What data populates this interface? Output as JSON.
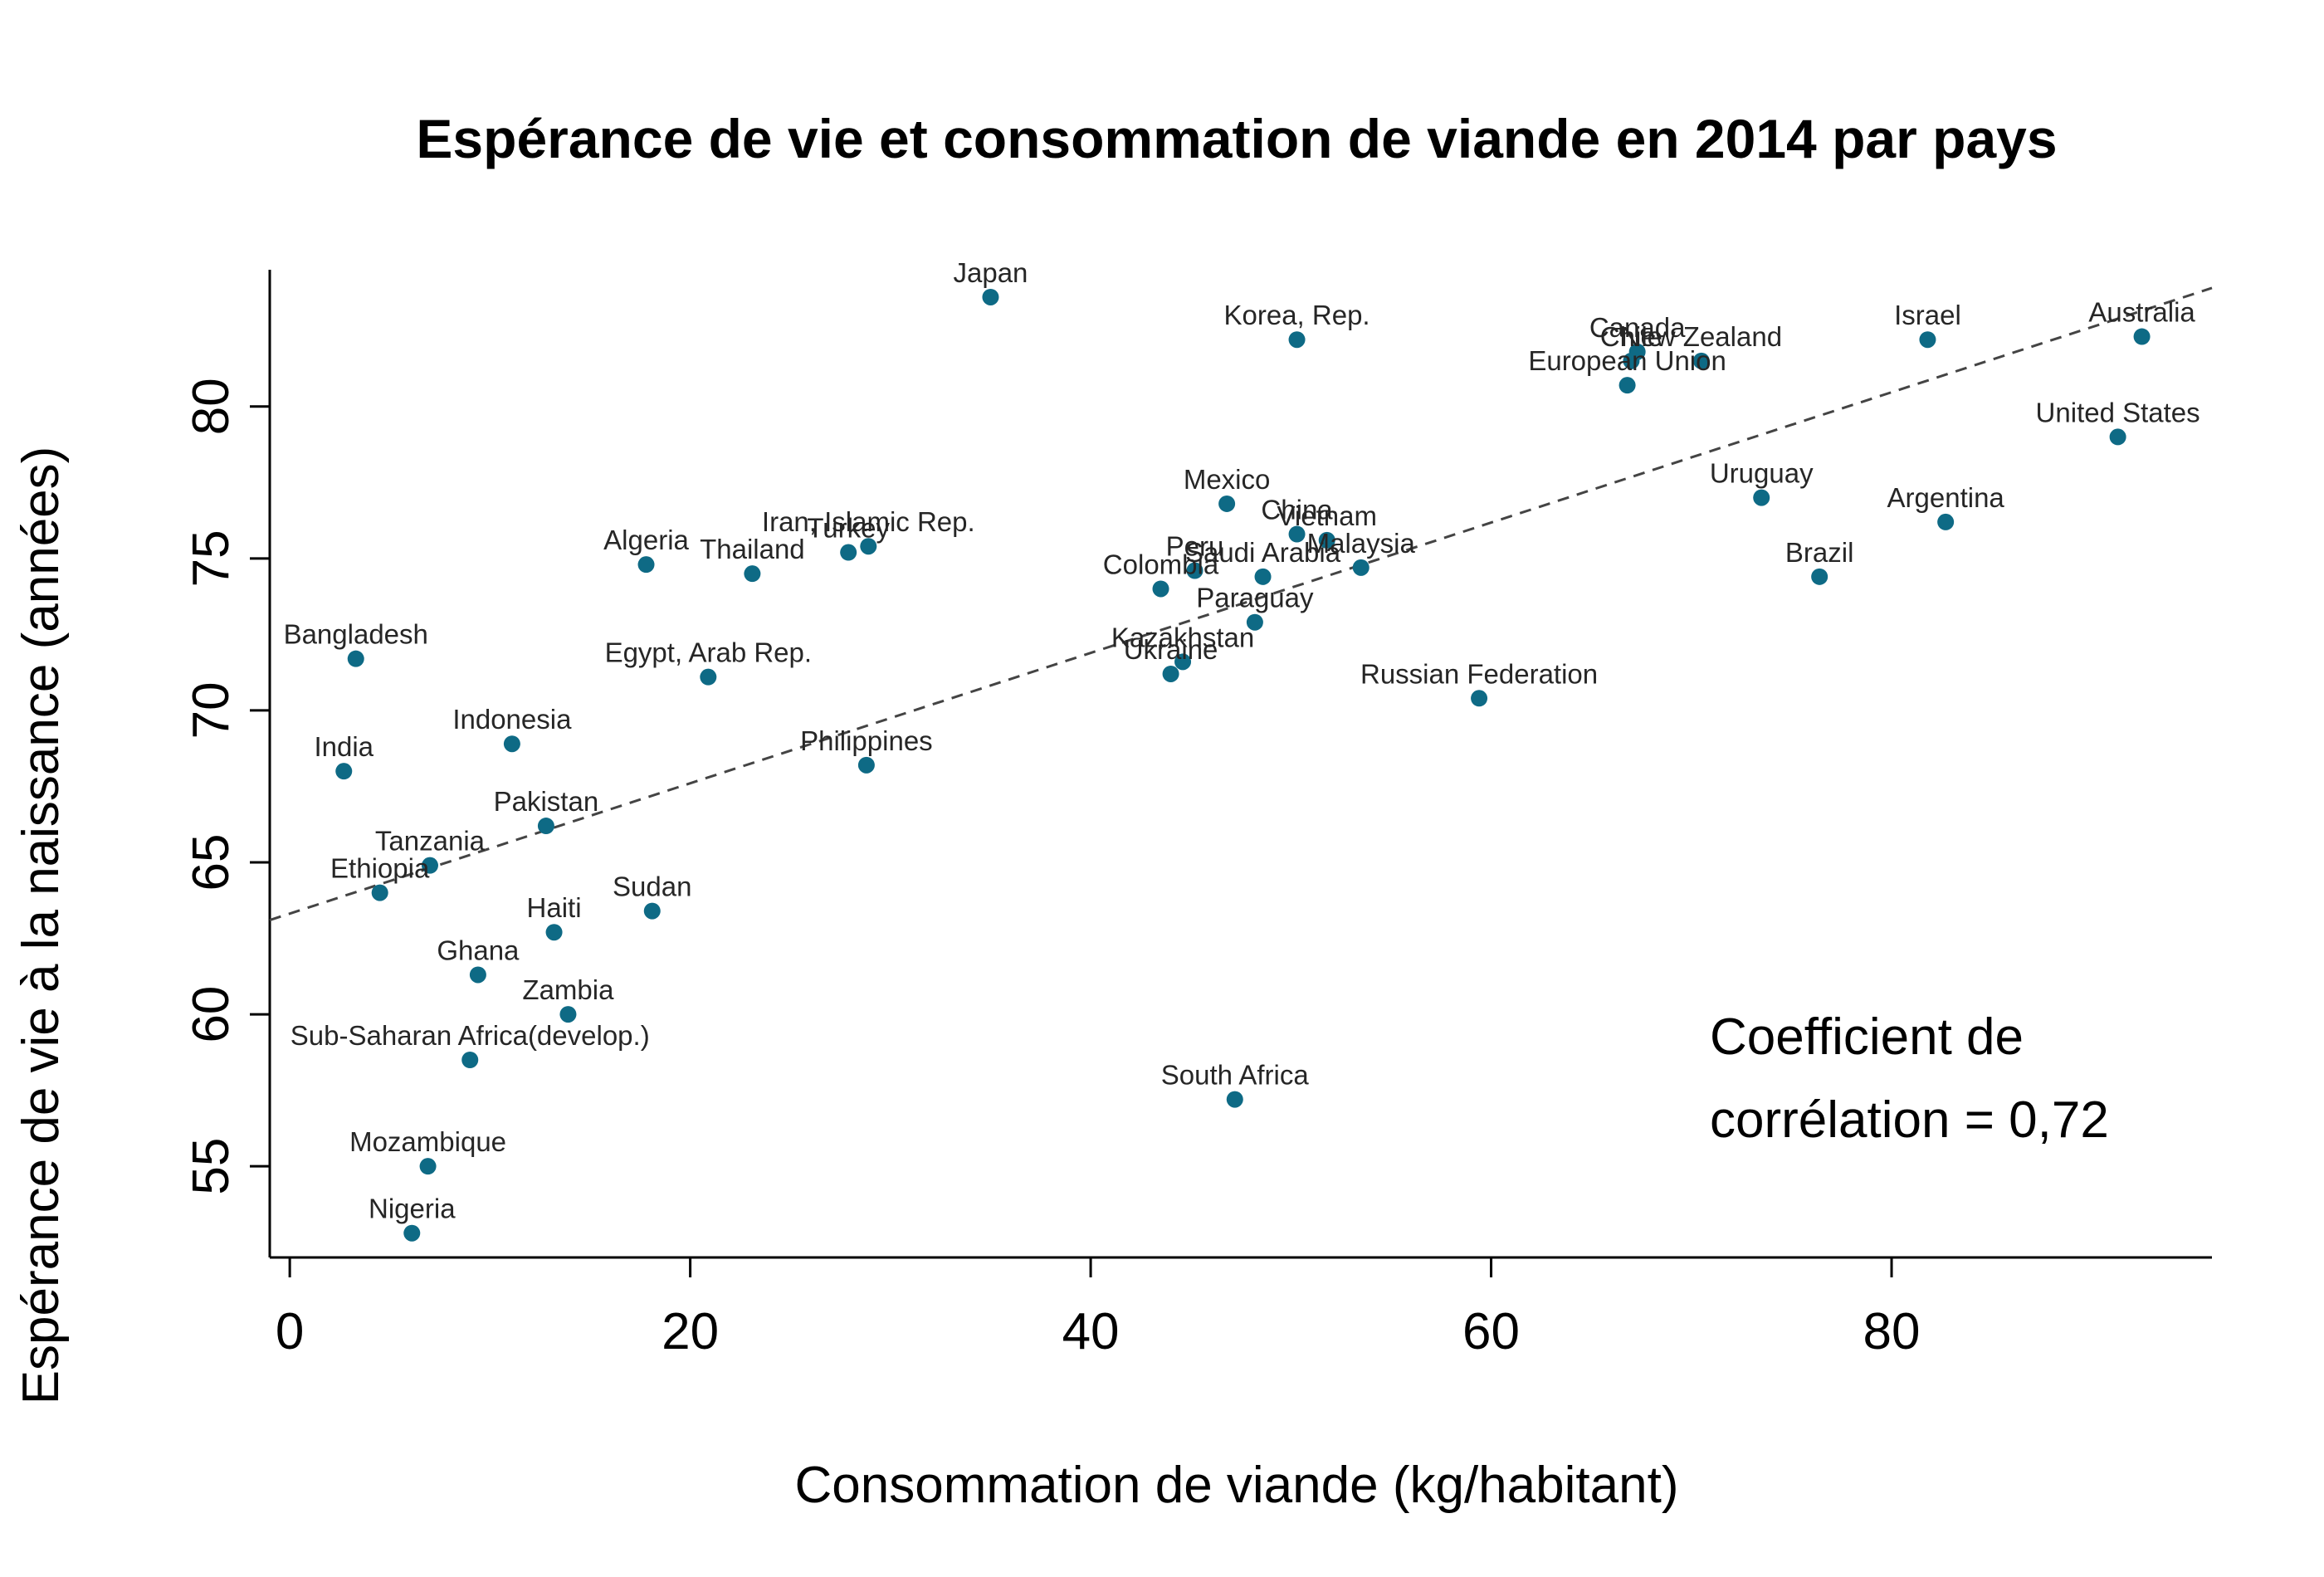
{
  "chart_data": {
    "type": "scatter",
    "title": "Espérance de vie et consommation de viande en 2014 par pays",
    "xlabel": "Consommation de viande (kg/habitant)",
    "ylabel": "Espérance de vie à la naissance (années)",
    "xlim": [
      -1,
      96
    ],
    "ylim": [
      52,
      84.5
    ],
    "xticks": [
      0,
      20,
      40,
      60,
      80
    ],
    "yticks": [
      55,
      60,
      65,
      70,
      75,
      80
    ],
    "grid": false,
    "point_color": "#0e6a85",
    "trendline": {
      "style": "dashed",
      "x": [
        -1,
        96
      ],
      "y": [
        63.1,
        83.9
      ]
    },
    "annotation": [
      "Coefficient de",
      "corrélation = 0,72"
    ],
    "points": [
      {
        "label": "Japan",
        "x": 35.0,
        "y": 83.6
      },
      {
        "label": "Korea, Rep.",
        "x": 50.3,
        "y": 82.2
      },
      {
        "label": "Israel",
        "x": 81.8,
        "y": 82.2
      },
      {
        "label": "Australia",
        "x": 92.5,
        "y": 82.3
      },
      {
        "label": "Canada",
        "x": 67.3,
        "y": 81.8
      },
      {
        "label": "Chile",
        "x": 67.0,
        "y": 81.5
      },
      {
        "label": "New Zealand",
        "x": 70.5,
        "y": 81.5
      },
      {
        "label": "European Union",
        "x": 66.8,
        "y": 80.7
      },
      {
        "label": "United States",
        "x": 91.3,
        "y": 79.0
      },
      {
        "label": "Uruguay",
        "x": 73.5,
        "y": 77.0
      },
      {
        "label": "Argentina",
        "x": 82.7,
        "y": 76.2
      },
      {
        "label": "Brazil",
        "x": 76.4,
        "y": 74.4
      },
      {
        "label": "Mexico",
        "x": 46.8,
        "y": 76.8
      },
      {
        "label": "China",
        "x": 50.3,
        "y": 75.8
      },
      {
        "label": "Vietnam",
        "x": 51.8,
        "y": 75.6
      },
      {
        "label": "Malaysia",
        "x": 53.5,
        "y": 74.7
      },
      {
        "label": "Peru",
        "x": 45.2,
        "y": 74.6
      },
      {
        "label": "Saudi Arabia",
        "x": 48.6,
        "y": 74.4
      },
      {
        "label": "Colombia",
        "x": 43.5,
        "y": 74.0
      },
      {
        "label": "Paraguay",
        "x": 48.2,
        "y": 72.9
      },
      {
        "label": "Kazakhstan",
        "x": 44.6,
        "y": 71.6
      },
      {
        "label": "Ukraine",
        "x": 44.0,
        "y": 71.2
      },
      {
        "label": "Russian Federation",
        "x": 59.4,
        "y": 70.4
      },
      {
        "label": "South Africa",
        "x": 47.2,
        "y": 57.2
      },
      {
        "label": "Algeria",
        "x": 17.8,
        "y": 74.8
      },
      {
        "label": "Thailand",
        "x": 23.1,
        "y": 74.5
      },
      {
        "label": "Iran, Islamic Rep.",
        "x": 28.9,
        "y": 75.4
      },
      {
        "label": "Turkey",
        "x": 27.9,
        "y": 75.2
      },
      {
        "label": "Egypt, Arab Rep.",
        "x": 20.9,
        "y": 71.1
      },
      {
        "label": "Philippines",
        "x": 28.8,
        "y": 68.2
      },
      {
        "label": "Bangladesh",
        "x": 3.3,
        "y": 71.7
      },
      {
        "label": "India",
        "x": 2.7,
        "y": 68.0
      },
      {
        "label": "Indonesia",
        "x": 11.1,
        "y": 68.9
      },
      {
        "label": "Pakistan",
        "x": 12.8,
        "y": 66.2
      },
      {
        "label": "Tanzania",
        "x": 7.0,
        "y": 64.9
      },
      {
        "label": "Ethiopia",
        "x": 4.5,
        "y": 64.0
      },
      {
        "label": "Sudan",
        "x": 18.1,
        "y": 63.4
      },
      {
        "label": "Haiti",
        "x": 13.2,
        "y": 62.7
      },
      {
        "label": "Ghana",
        "x": 9.4,
        "y": 61.3
      },
      {
        "label": "Zambia",
        "x": 13.9,
        "y": 60.0
      },
      {
        "label": "Sub-Saharan Africa(develop.)",
        "x": 9.0,
        "y": 58.5
      },
      {
        "label": "Mozambique",
        "x": 6.9,
        "y": 55.0
      },
      {
        "label": "Nigeria",
        "x": 6.1,
        "y": 52.8
      }
    ]
  }
}
